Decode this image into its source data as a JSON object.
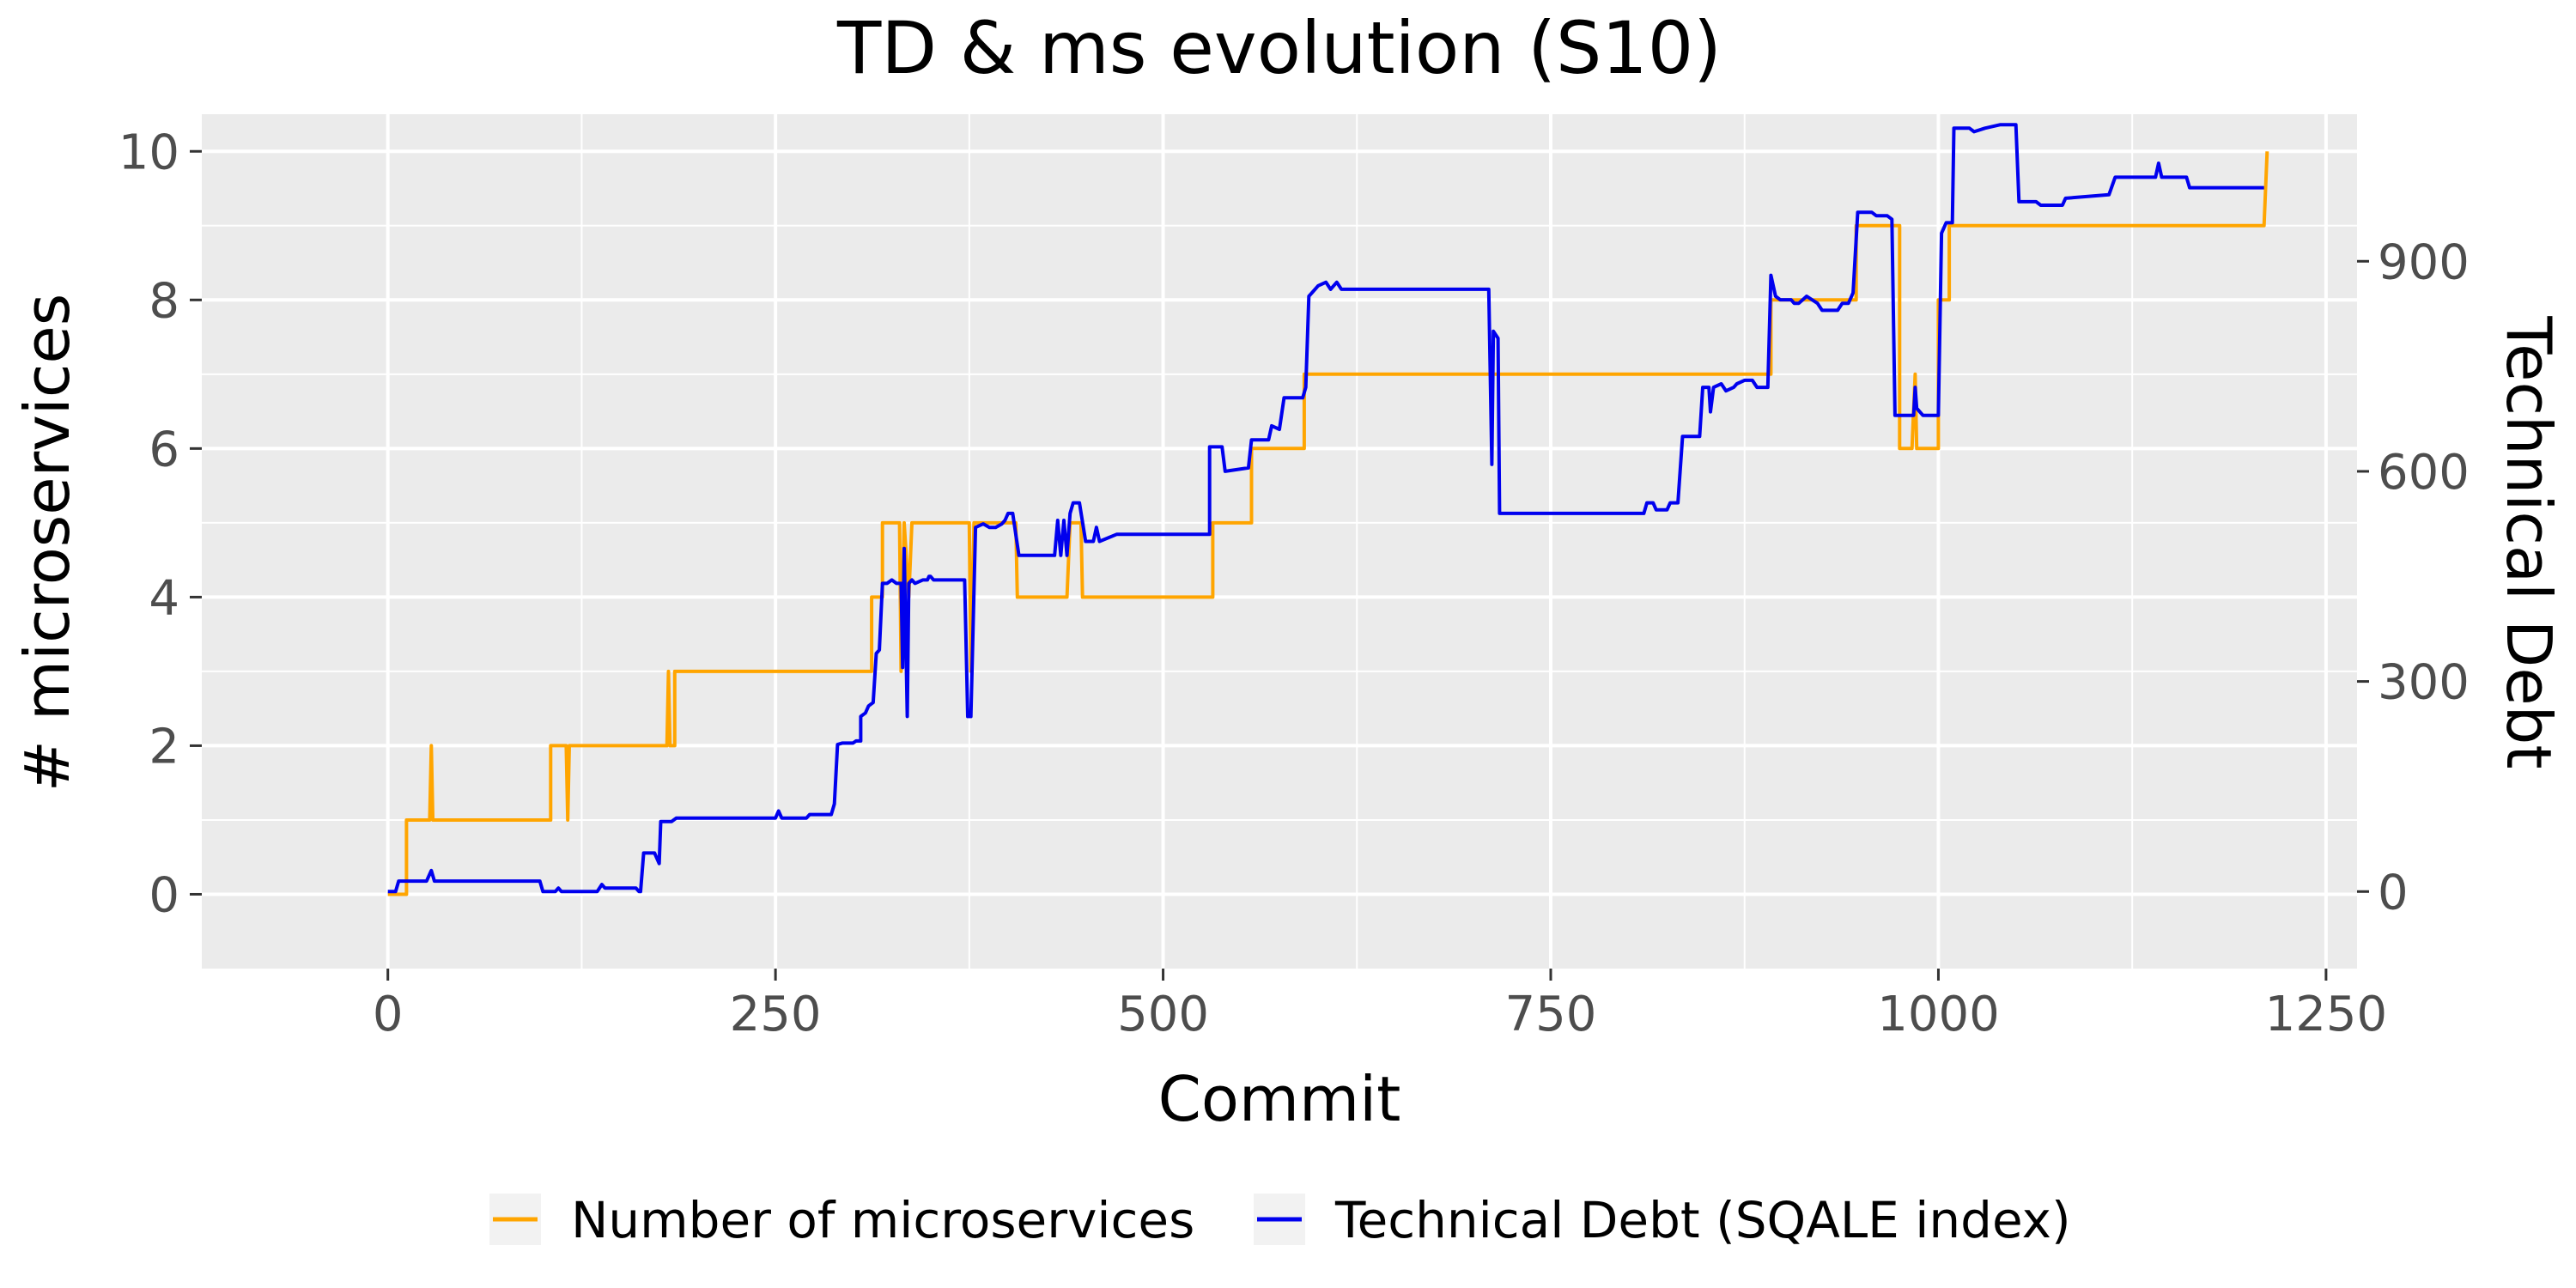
{
  "chart_data": {
    "type": "line",
    "title": "TD & ms evolution (S10)",
    "xlabel": "Commit",
    "ylabel": "# microservices",
    "y2label": "Technical Debt",
    "xlim": [
      -120,
      1270
    ],
    "ylim": [
      -1,
      10.5
    ],
    "y2lim": [
      -110,
      1110
    ],
    "x_ticks": [
      "0",
      "250",
      "500",
      "750",
      "1000",
      "1250"
    ],
    "y_ticks": [
      "0",
      "2",
      "4",
      "6",
      "8",
      "10"
    ],
    "y2_ticks": [
      "0",
      "300",
      "600",
      "900"
    ],
    "grid": true,
    "legend_position": "bottom",
    "colors": {
      "panel": "#ebebeb",
      "grid": "#ffffff",
      "microservices": "#ffa500",
      "debt": "#0000ee"
    },
    "series": [
      {
        "name": "Number of microservices",
        "axis": "left",
        "color": "#ffa500",
        "points": [
          [
            0,
            0
          ],
          [
            12,
            0
          ],
          [
            12,
            1
          ],
          [
            27,
            1
          ],
          [
            28,
            2
          ],
          [
            29,
            1
          ],
          [
            105,
            1
          ],
          [
            105,
            2
          ],
          [
            115,
            2
          ],
          [
            116,
            1
          ],
          [
            117,
            2
          ],
          [
            180,
            2
          ],
          [
            181,
            3
          ],
          [
            182,
            2
          ],
          [
            185,
            2
          ],
          [
            185,
            3
          ],
          [
            312,
            3
          ],
          [
            312,
            4
          ],
          [
            319,
            4
          ],
          [
            319,
            5
          ],
          [
            330,
            5
          ],
          [
            331,
            3
          ],
          [
            333,
            5
          ],
          [
            336,
            4
          ],
          [
            338,
            5
          ],
          [
            375,
            5
          ],
          [
            376,
            3
          ],
          [
            378,
            5
          ],
          [
            405,
            5
          ],
          [
            406,
            4
          ],
          [
            438,
            4
          ],
          [
            440,
            5
          ],
          [
            447,
            5
          ],
          [
            448,
            4
          ],
          [
            532,
            4
          ],
          [
            532,
            5
          ],
          [
            557,
            5
          ],
          [
            557,
            6
          ],
          [
            591,
            6
          ],
          [
            591,
            7
          ],
          [
            892,
            7
          ],
          [
            892,
            8
          ],
          [
            947,
            8
          ],
          [
            947,
            9
          ],
          [
            975,
            9
          ],
          [
            975,
            6
          ],
          [
            983,
            6
          ],
          [
            985,
            7
          ],
          [
            986,
            6
          ],
          [
            1000,
            6
          ],
          [
            1000,
            8
          ],
          [
            1007,
            8
          ],
          [
            1007,
            9
          ],
          [
            1210,
            9
          ],
          [
            1212,
            10
          ]
        ]
      },
      {
        "name": "Technical Debt (SQALE index)",
        "axis": "right",
        "color": "#0000ee",
        "points": [
          [
            0,
            0
          ],
          [
            5,
            0
          ],
          [
            7,
            15
          ],
          [
            25,
            15
          ],
          [
            28,
            30
          ],
          [
            30,
            15
          ],
          [
            98,
            15
          ],
          [
            100,
            0
          ],
          [
            108,
            0
          ],
          [
            110,
            5
          ],
          [
            112,
            0
          ],
          [
            135,
            0
          ],
          [
            138,
            10
          ],
          [
            140,
            5
          ],
          [
            160,
            5
          ],
          [
            162,
            0
          ],
          [
            163,
            0
          ],
          [
            165,
            55
          ],
          [
            172,
            55
          ],
          [
            175,
            40
          ],
          [
            176,
            100
          ],
          [
            183,
            100
          ],
          [
            186,
            105
          ],
          [
            250,
            105
          ],
          [
            252,
            115
          ],
          [
            254,
            105
          ],
          [
            270,
            105
          ],
          [
            272,
            110
          ],
          [
            286,
            110
          ],
          [
            288,
            125
          ],
          [
            290,
            210
          ],
          [
            293,
            212
          ],
          [
            300,
            212
          ],
          [
            302,
            215
          ],
          [
            305,
            215
          ],
          [
            305,
            250
          ],
          [
            308,
            255
          ],
          [
            310,
            265
          ],
          [
            313,
            270
          ],
          [
            315,
            340
          ],
          [
            317,
            345
          ],
          [
            319,
            440
          ],
          [
            322,
            440
          ],
          [
            325,
            445
          ],
          [
            328,
            440
          ],
          [
            331,
            440
          ],
          [
            332,
            320
          ],
          [
            333,
            490
          ],
          [
            335,
            250
          ],
          [
            336,
            440
          ],
          [
            338,
            445
          ],
          [
            340,
            440
          ],
          [
            345,
            445
          ],
          [
            348,
            445
          ],
          [
            349,
            450
          ],
          [
            350,
            450
          ],
          [
            352,
            445
          ],
          [
            369,
            445
          ],
          [
            372,
            445
          ],
          [
            374,
            250
          ],
          [
            376,
            250
          ],
          [
            379,
            520
          ],
          [
            384,
            525
          ],
          [
            388,
            520
          ],
          [
            392,
            520
          ],
          [
            396,
            525
          ],
          [
            398,
            530
          ],
          [
            400,
            540
          ],
          [
            403,
            540
          ],
          [
            407,
            480
          ],
          [
            420,
            480
          ],
          [
            428,
            480
          ],
          [
            430,
            480
          ],
          [
            432,
            530
          ],
          [
            434,
            480
          ],
          [
            436,
            530
          ],
          [
            438,
            480
          ],
          [
            440,
            540
          ],
          [
            442,
            555
          ],
          [
            446,
            555
          ],
          [
            450,
            500
          ],
          [
            455,
            500
          ],
          [
            457,
            520
          ],
          [
            459,
            500
          ],
          [
            470,
            510
          ],
          [
            530,
            510
          ],
          [
            530,
            635
          ],
          [
            538,
            635
          ],
          [
            540,
            600
          ],
          [
            555,
            605
          ],
          [
            557,
            645
          ],
          [
            568,
            645
          ],
          [
            570,
            665
          ],
          [
            575,
            660
          ],
          [
            578,
            705
          ],
          [
            590,
            705
          ],
          [
            592,
            720
          ],
          [
            594,
            850
          ],
          [
            596,
            855
          ],
          [
            600,
            865
          ],
          [
            605,
            870
          ],
          [
            608,
            860
          ],
          [
            612,
            870
          ],
          [
            615,
            860
          ],
          [
            700,
            860
          ],
          [
            710,
            860
          ],
          [
            712,
            610
          ],
          [
            713,
            800
          ],
          [
            716,
            790
          ],
          [
            717,
            540
          ],
          [
            725,
            540
          ],
          [
            810,
            540
          ],
          [
            812,
            555
          ],
          [
            816,
            555
          ],
          [
            818,
            545
          ],
          [
            825,
            545
          ],
          [
            827,
            555
          ],
          [
            832,
            555
          ],
          [
            835,
            650
          ],
          [
            846,
            650
          ],
          [
            848,
            720
          ],
          [
            852,
            720
          ],
          [
            853,
            685
          ],
          [
            855,
            720
          ],
          [
            860,
            725
          ],
          [
            863,
            715
          ],
          [
            868,
            720
          ],
          [
            870,
            725
          ],
          [
            875,
            730
          ],
          [
            880,
            730
          ],
          [
            883,
            720
          ],
          [
            890,
            720
          ],
          [
            892,
            880
          ],
          [
            895,
            850
          ],
          [
            898,
            845
          ],
          [
            905,
            845
          ],
          [
            907,
            840
          ],
          [
            910,
            840
          ],
          [
            915,
            850
          ],
          [
            922,
            840
          ],
          [
            925,
            830
          ],
          [
            935,
            830
          ],
          [
            938,
            840
          ],
          [
            942,
            840
          ],
          [
            945,
            855
          ],
          [
            948,
            970
          ],
          [
            957,
            970
          ],
          [
            960,
            965
          ],
          [
            967,
            965
          ],
          [
            970,
            960
          ],
          [
            972,
            680
          ],
          [
            984,
            680
          ],
          [
            985,
            720
          ],
          [
            986,
            690
          ],
          [
            990,
            680
          ],
          [
            1000,
            680
          ],
          [
            1002,
            940
          ],
          [
            1005,
            955
          ],
          [
            1009,
            955
          ],
          [
            1010,
            1090
          ],
          [
            1020,
            1090
          ],
          [
            1023,
            1085
          ],
          [
            1030,
            1090
          ],
          [
            1040,
            1095
          ],
          [
            1050,
            1095
          ],
          [
            1052,
            985
          ],
          [
            1063,
            985
          ],
          [
            1066,
            980
          ],
          [
            1080,
            980
          ],
          [
            1082,
            990
          ],
          [
            1110,
            995
          ],
          [
            1114,
            1020
          ],
          [
            1140,
            1020
          ],
          [
            1142,
            1040
          ],
          [
            1144,
            1020
          ],
          [
            1160,
            1020
          ],
          [
            1162,
            1005
          ],
          [
            1210,
            1005
          ]
        ]
      }
    ]
  }
}
